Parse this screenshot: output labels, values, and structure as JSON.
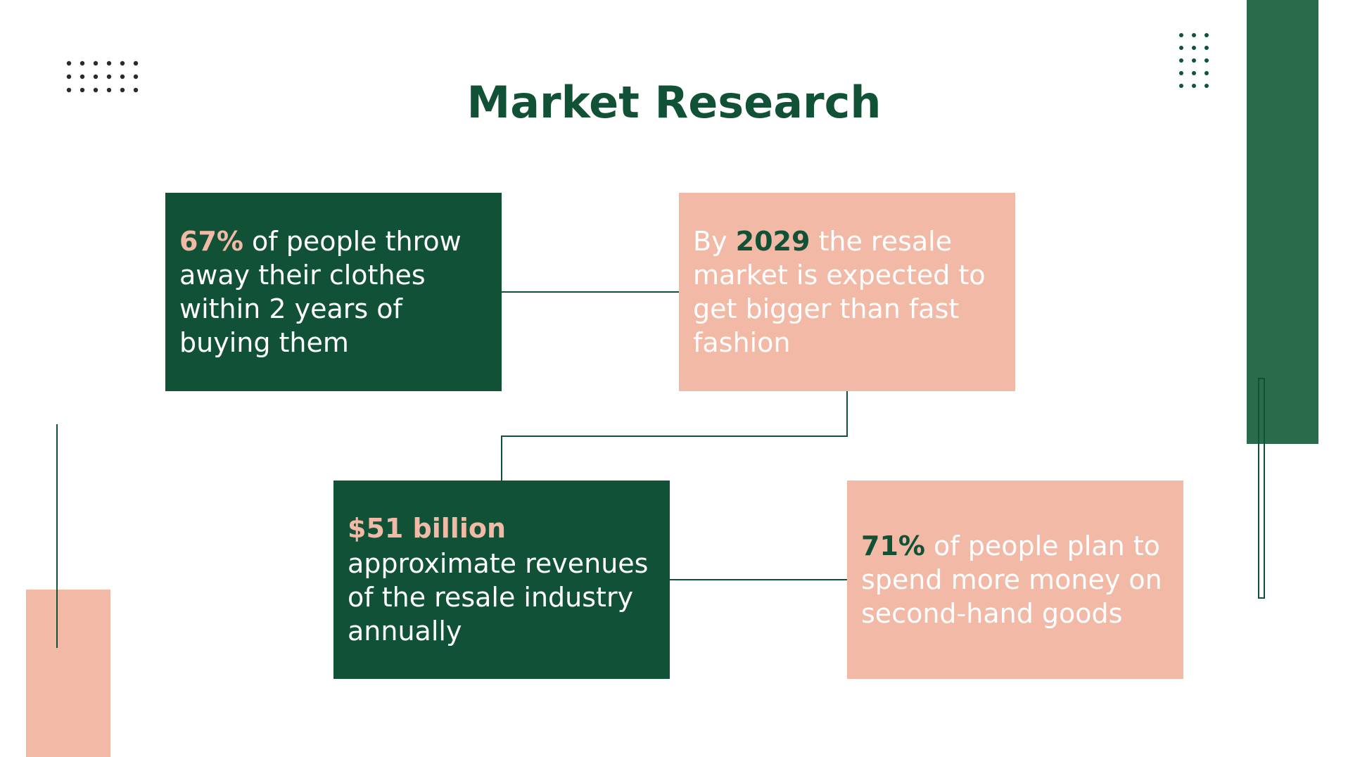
{
  "slide": {
    "title": "Market Research"
  },
  "cards": [
    {
      "highlight": "67%",
      "text": " of people throw away their clothes within 2 years of buying them"
    },
    {
      "prefix": "By ",
      "highlight": "2029",
      "text": " the resale market is expected to get bigger than fast fashion"
    },
    {
      "highlight": "$51 billion",
      "text": "approximate revenues of the resale industry annually"
    },
    {
      "highlight": "71%",
      "text": " of people plan to spend more money on second-hand goods"
    }
  ],
  "colors": {
    "dark_green": "#115236",
    "accent_green": "#2a6b4c",
    "pink": "#f2b9a6",
    "white": "#ffffff"
  }
}
